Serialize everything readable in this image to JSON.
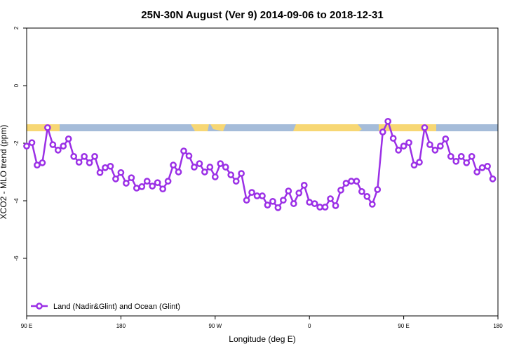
{
  "chart_data": {
    "type": "line",
    "title": "25N-30N August (Ver 9)   2014-09-06 to 2018-12-31",
    "x_label": "Longitude (deg E)",
    "y_label": "XCO2 - MLO trend (ppm)",
    "xlim": [
      90,
      540
    ],
    "ylim": [
      -8,
      2
    ],
    "xticks": [
      {
        "value": 90,
        "label": "90 E"
      },
      180,
      {
        "value": 270,
        "label": "90 W"
      },
      {
        "value": 360,
        "label": "0"
      },
      {
        "value": 450,
        "label": "90 E"
      },
      {
        "value": 540,
        "label": "180"
      }
    ],
    "yticks": [
      2,
      0,
      -2,
      -4,
      -6
    ],
    "legend": "bottom-left",
    "x": [
      90,
      95,
      100,
      105,
      110,
      115,
      120,
      125,
      130,
      135,
      140,
      145,
      150,
      155,
      160,
      165,
      170,
      175,
      180,
      185,
      190,
      195,
      200,
      205,
      210,
      215,
      220,
      225,
      230,
      235,
      240,
      245,
      250,
      255,
      260,
      265,
      270,
      275,
      280,
      285,
      290,
      295,
      300,
      305,
      310,
      315,
      320,
      325,
      330,
      335,
      340,
      345,
      350,
      355,
      360,
      365,
      370,
      375,
      380,
      385,
      390,
      395,
      400,
      405,
      410,
      415,
      420,
      425,
      430,
      435,
      440,
      445,
      450,
      455,
      460,
      465,
      470,
      475,
      480,
      485,
      490,
      495,
      500,
      505,
      510,
      515,
      520,
      525,
      530,
      535
    ],
    "series": [
      {
        "name": "Land (Nadir&Glint) and Ocean (Glint)",
        "color": "#9b30e6",
        "values": [
          -2.1,
          -1.98,
          -2.76,
          -2.68,
          -1.46,
          -2.05,
          -2.24,
          -2.1,
          -1.85,
          -2.46,
          -2.66,
          -2.46,
          -2.68,
          -2.46,
          -3.02,
          -2.85,
          -2.8,
          -3.24,
          -3.02,
          -3.39,
          -3.2,
          -3.56,
          -3.51,
          -3.32,
          -3.49,
          -3.37,
          -3.59,
          -3.32,
          -2.76,
          -3.0,
          -2.27,
          -2.44,
          -2.83,
          -2.71,
          -3.0,
          -2.83,
          -3.17,
          -2.71,
          -2.83,
          -3.1,
          -3.32,
          -3.05,
          -3.98,
          -3.71,
          -3.83,
          -3.83,
          -4.15,
          -4.02,
          -4.24,
          -3.98,
          -3.66,
          -4.1,
          -3.73,
          -3.46,
          -4.05,
          -4.1,
          -4.22,
          -4.22,
          -3.93,
          -4.17,
          -3.63,
          -3.39,
          -3.32,
          -3.32,
          -3.68,
          -3.85,
          -4.12,
          -3.61,
          -1.61,
          -1.24,
          -1.83,
          -2.24,
          -2.1,
          -1.98,
          -2.76,
          -2.66,
          -1.46,
          -2.05,
          -2.24,
          -2.1,
          -1.85,
          -2.46,
          -2.63,
          -2.46,
          -2.68,
          -2.46,
          -3.0,
          -2.85,
          -2.8,
          -3.24
        ]
      }
    ]
  }
}
